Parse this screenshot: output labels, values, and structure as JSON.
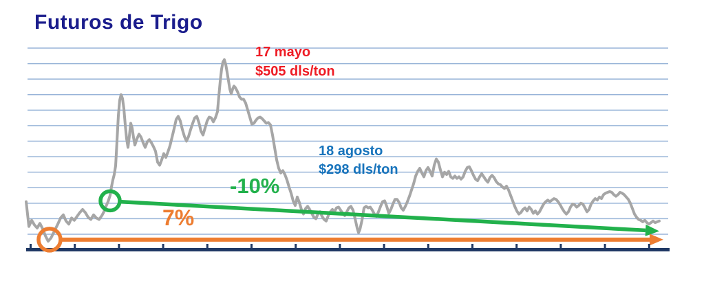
{
  "page": {
    "title": "Futuros de Trigo"
  },
  "anno": {
    "red": {
      "l1": "17 mayo",
      "l2": "$505 dls/ton"
    },
    "blue": {
      "l1": "18 agosto",
      "l2": "$298 dls/ton"
    },
    "green_pct": "-10%",
    "orange_pct": "7%"
  },
  "colors": {
    "title": "#1A1C8C",
    "red": "#EE1C25",
    "blue": "#1874BC",
    "green": "#22B14C",
    "orange": "#ED7D31",
    "line": "#A6A6A6",
    "gridline": "#98B4D8",
    "axis": "#1F3864"
  },
  "chart_data": {
    "type": "line",
    "title": "Futuros de Trigo",
    "y_unit": "dls/ton",
    "grid": "horizontal",
    "legend": "none",
    "y_axis": {
      "min": 280,
      "max": 520,
      "gridline_step": 20,
      "tick_labels_visible": false
    },
    "x_axis": {
      "tick_count": 15,
      "labels_visible": false
    },
    "annotations": [
      {
        "date": "17 mayo",
        "value_dls_ton": 505,
        "text": "17 mayo $505 dls/ton",
        "color": "#EE1C25"
      },
      {
        "date": "18 agosto",
        "value_dls_ton": 298,
        "text": "18 agosto $298 dls/ton",
        "color": "#1874BC"
      }
    ],
    "trend_arrows": [
      {
        "label": "-10%",
        "color": "#22B14C",
        "from": [
          174,
          322
        ],
        "to": [
          958,
          284
        ],
        "width": 5.5
      },
      {
        "label": "7%",
        "color": "#ED7D31",
        "from": [
          86,
          273
        ],
        "to": [
          964,
          273
        ],
        "width": 6
      }
    ],
    "start_markers": [
      {
        "color": "#ED7D31",
        "at": [
          72,
          273
        ],
        "radius": 16
      },
      {
        "color": "#22B14C",
        "at": [
          160,
          323
        ],
        "radius": 14
      }
    ],
    "series": [
      {
        "name": "futuros de trigo",
        "color": "#A6A6A6",
        "points": [
          [
            38,
            322
          ],
          [
            42,
            290
          ],
          [
            46,
            298
          ],
          [
            50,
            292
          ],
          [
            54,
            288
          ],
          [
            58,
            294
          ],
          [
            62,
            287
          ],
          [
            66,
            278
          ],
          [
            70,
            271
          ],
          [
            74,
            275
          ],
          [
            79,
            284
          ],
          [
            84,
            293
          ],
          [
            88,
            301
          ],
          [
            92,
            305
          ],
          [
            96,
            297
          ],
          [
            100,
            293
          ],
          [
            104,
            301
          ],
          [
            108,
            298
          ],
          [
            112,
            303
          ],
          [
            116,
            308
          ],
          [
            120,
            312
          ],
          [
            124,
            308
          ],
          [
            128,
            302
          ],
          [
            132,
            299
          ],
          [
            136,
            305
          ],
          [
            140,
            301
          ],
          [
            144,
            299
          ],
          [
            148,
            304
          ],
          [
            151,
            309
          ],
          [
            154,
            316
          ],
          [
            157,
            322
          ],
          [
            160,
            330
          ],
          [
            162,
            341
          ],
          [
            164,
            350
          ],
          [
            166,
            357
          ],
          [
            168,
            368
          ],
          [
            170,
            400
          ],
          [
            172,
            433
          ],
          [
            174,
            453
          ],
          [
            176,
            460
          ],
          [
            178,
            455
          ],
          [
            180,
            442
          ],
          [
            182,
            421
          ],
          [
            184,
            403
          ],
          [
            186,
            392
          ],
          [
            188,
            407
          ],
          [
            190,
            423
          ],
          [
            192,
            417
          ],
          [
            194,
            405
          ],
          [
            196,
            395
          ],
          [
            199,
            403
          ],
          [
            202,
            409
          ],
          [
            205,
            405
          ],
          [
            208,
            398
          ],
          [
            211,
            392
          ],
          [
            214,
            399
          ],
          [
            217,
            402
          ],
          [
            220,
            398
          ],
          [
            223,
            393
          ],
          [
            226,
            387
          ],
          [
            229,
            373
          ],
          [
            232,
            369
          ],
          [
            235,
            376
          ],
          [
            238,
            384
          ],
          [
            241,
            379
          ],
          [
            244,
            386
          ],
          [
            247,
            394
          ],
          [
            250,
            405
          ],
          [
            253,
            416
          ],
          [
            256,
            428
          ],
          [
            259,
            432
          ],
          [
            262,
            426
          ],
          [
            265,
            415
          ],
          [
            268,
            406
          ],
          [
            271,
            400
          ],
          [
            274,
            406
          ],
          [
            277,
            415
          ],
          [
            280,
            423
          ],
          [
            283,
            430
          ],
          [
            286,
            432
          ],
          [
            289,
            424
          ],
          [
            292,
            413
          ],
          [
            295,
            408
          ],
          [
            298,
            417
          ],
          [
            301,
            426
          ],
          [
            304,
            431
          ],
          [
            307,
            430
          ],
          [
            310,
            425
          ],
          [
            313,
            430
          ],
          [
            316,
            438
          ],
          [
            318,
            458
          ],
          [
            320,
            477
          ],
          [
            322,
            493
          ],
          [
            324,
            502
          ],
          [
            326,
            505
          ],
          [
            328,
            499
          ],
          [
            330,
            489
          ],
          [
            332,
            478
          ],
          [
            334,
            467
          ],
          [
            336,
            461
          ],
          [
            338,
            467
          ],
          [
            340,
            471
          ],
          [
            342,
            469
          ],
          [
            345,
            464
          ],
          [
            348,
            457
          ],
          [
            351,
            454
          ],
          [
            354,
            454
          ],
          [
            357,
            449
          ],
          [
            360,
            440
          ],
          [
            363,
            431
          ],
          [
            366,
            422
          ],
          [
            369,
            423
          ],
          [
            372,
            427
          ],
          [
            375,
            430
          ],
          [
            378,
            431
          ],
          [
            381,
            429
          ],
          [
            384,
            426
          ],
          [
            387,
            423
          ],
          [
            390,
            424
          ],
          [
            393,
            421
          ],
          [
            396,
            408
          ],
          [
            399,
            392
          ],
          [
            402,
            376
          ],
          [
            405,
            365
          ],
          [
            408,
            359
          ],
          [
            411,
            362
          ],
          [
            414,
            357
          ],
          [
            417,
            350
          ],
          [
            420,
            341
          ],
          [
            423,
            333
          ],
          [
            426,
            323
          ],
          [
            429,
            317
          ],
          [
            432,
            328
          ],
          [
            435,
            321
          ],
          [
            438,
            312
          ],
          [
            441,
            306
          ],
          [
            444,
            313
          ],
          [
            447,
            316
          ],
          [
            450,
            312
          ],
          [
            453,
            307
          ],
          [
            456,
            302
          ],
          [
            459,
            300
          ],
          [
            462,
            306
          ],
          [
            465,
            309
          ],
          [
            468,
            303
          ],
          [
            471,
            299
          ],
          [
            474,
            297
          ],
          [
            477,
            304
          ],
          [
            480,
            309
          ],
          [
            483,
            312
          ],
          [
            486,
            309
          ],
          [
            489,
            314
          ],
          [
            492,
            315
          ],
          [
            495,
            311
          ],
          [
            498,
            307
          ],
          [
            501,
            304
          ],
          [
            504,
            309
          ],
          [
            507,
            314
          ],
          [
            510,
            316
          ],
          [
            513,
            311
          ],
          [
            516,
            300
          ],
          [
            519,
            288
          ],
          [
            521,
            282
          ],
          [
            523,
            286
          ],
          [
            526,
            298
          ],
          [
            529,
            314
          ],
          [
            532,
            316
          ],
          [
            535,
            314
          ],
          [
            538,
            315
          ],
          [
            541,
            311
          ],
          [
            544,
            306
          ],
          [
            547,
            303
          ],
          [
            550,
            309
          ],
          [
            553,
            316
          ],
          [
            556,
            322
          ],
          [
            559,
            323
          ],
          [
            562,
            316
          ],
          [
            565,
            307
          ],
          [
            568,
            312
          ],
          [
            571,
            319
          ],
          [
            574,
            325
          ],
          [
            577,
            325
          ],
          [
            580,
            321
          ],
          [
            583,
            314
          ],
          [
            586,
            311
          ],
          [
            589,
            316
          ],
          [
            592,
            322
          ],
          [
            595,
            329
          ],
          [
            598,
            337
          ],
          [
            601,
            345
          ],
          [
            604,
            355
          ],
          [
            607,
            361
          ],
          [
            610,
            365
          ],
          [
            613,
            359
          ],
          [
            616,
            354
          ],
          [
            619,
            362
          ],
          [
            622,
            366
          ],
          [
            625,
            361
          ],
          [
            628,
            355
          ],
          [
            631,
            369
          ],
          [
            634,
            377
          ],
          [
            637,
            373
          ],
          [
            640,
            363
          ],
          [
            643,
            354
          ],
          [
            646,
            360
          ],
          [
            649,
            357
          ],
          [
            652,
            361
          ],
          [
            655,
            354
          ],
          [
            658,
            352
          ],
          [
            661,
            355
          ],
          [
            664,
            352
          ],
          [
            667,
            354
          ],
          [
            670,
            351
          ],
          [
            673,
            354
          ],
          [
            676,
            361
          ],
          [
            679,
            366
          ],
          [
            682,
            367
          ],
          [
            685,
            362
          ],
          [
            688,
            356
          ],
          [
            691,
            351
          ],
          [
            694,
            349
          ],
          [
            697,
            354
          ],
          [
            700,
            358
          ],
          [
            703,
            354
          ],
          [
            706,
            350
          ],
          [
            709,
            347
          ],
          [
            712,
            353
          ],
          [
            715,
            356
          ],
          [
            718,
            353
          ],
          [
            721,
            348
          ],
          [
            724,
            345
          ],
          [
            727,
            344
          ],
          [
            730,
            341
          ],
          [
            733,
            339
          ],
          [
            736,
            342
          ],
          [
            739,
            337
          ],
          [
            742,
            330
          ],
          [
            745,
            323
          ],
          [
            748,
            316
          ],
          [
            751,
            310
          ],
          [
            754,
            306
          ],
          [
            757,
            308
          ],
          [
            760,
            312
          ],
          [
            763,
            314
          ],
          [
            766,
            310
          ],
          [
            769,
            315
          ],
          [
            772,
            312
          ],
          [
            775,
            307
          ],
          [
            778,
            310
          ],
          [
            781,
            306
          ],
          [
            784,
            309
          ],
          [
            787,
            314
          ],
          [
            790,
            319
          ],
          [
            793,
            322
          ],
          [
            796,
            324
          ],
          [
            799,
            322
          ],
          [
            802,
            324
          ],
          [
            805,
            326
          ],
          [
            808,
            325
          ],
          [
            811,
            322
          ],
          [
            814,
            318
          ],
          [
            817,
            313
          ],
          [
            820,
            309
          ],
          [
            823,
            306
          ],
          [
            826,
            309
          ],
          [
            829,
            315
          ],
          [
            832,
            319
          ],
          [
            835,
            318
          ],
          [
            838,
            315
          ],
          [
            841,
            317
          ],
          [
            844,
            320
          ],
          [
            847,
            319
          ],
          [
            850,
            314
          ],
          [
            853,
            309
          ],
          [
            856,
            312
          ],
          [
            859,
            319
          ],
          [
            862,
            323
          ],
          [
            865,
            326
          ],
          [
            868,
            324
          ],
          [
            871,
            328
          ],
          [
            874,
            326
          ],
          [
            877,
            331
          ],
          [
            880,
            333
          ],
          [
            883,
            334
          ],
          [
            886,
            335
          ],
          [
            889,
            334
          ],
          [
            892,
            331
          ],
          [
            895,
            329
          ],
          [
            898,
            331
          ],
          [
            901,
            334
          ],
          [
            904,
            333
          ],
          [
            907,
            331
          ],
          [
            910,
            328
          ],
          [
            913,
            325
          ],
          [
            916,
            320
          ],
          [
            919,
            313
          ],
          [
            922,
            306
          ],
          [
            925,
            302
          ],
          [
            928,
            299
          ],
          [
            931,
            298
          ],
          [
            934,
            296
          ],
          [
            937,
            298
          ],
          [
            940,
            295
          ],
          [
            943,
            293
          ],
          [
            946,
            295
          ],
          [
            949,
            297
          ],
          [
            952,
            295
          ],
          [
            955,
            296
          ],
          [
            958,
            297
          ]
        ]
      }
    ]
  }
}
